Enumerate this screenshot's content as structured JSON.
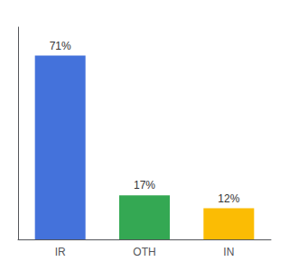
{
  "chart_data": {
    "type": "bar",
    "categories": [
      "IR",
      "OTH",
      "IN"
    ],
    "values": [
      71,
      17,
      12
    ],
    "value_labels": [
      "71%",
      "17%",
      "12%"
    ],
    "colors": [
      "#4472db",
      "#34a853",
      "#fbbc04"
    ],
    "ylim": [
      0,
      82
    ],
    "data_labels": true,
    "tick_labels": "x",
    "grid": false
  }
}
